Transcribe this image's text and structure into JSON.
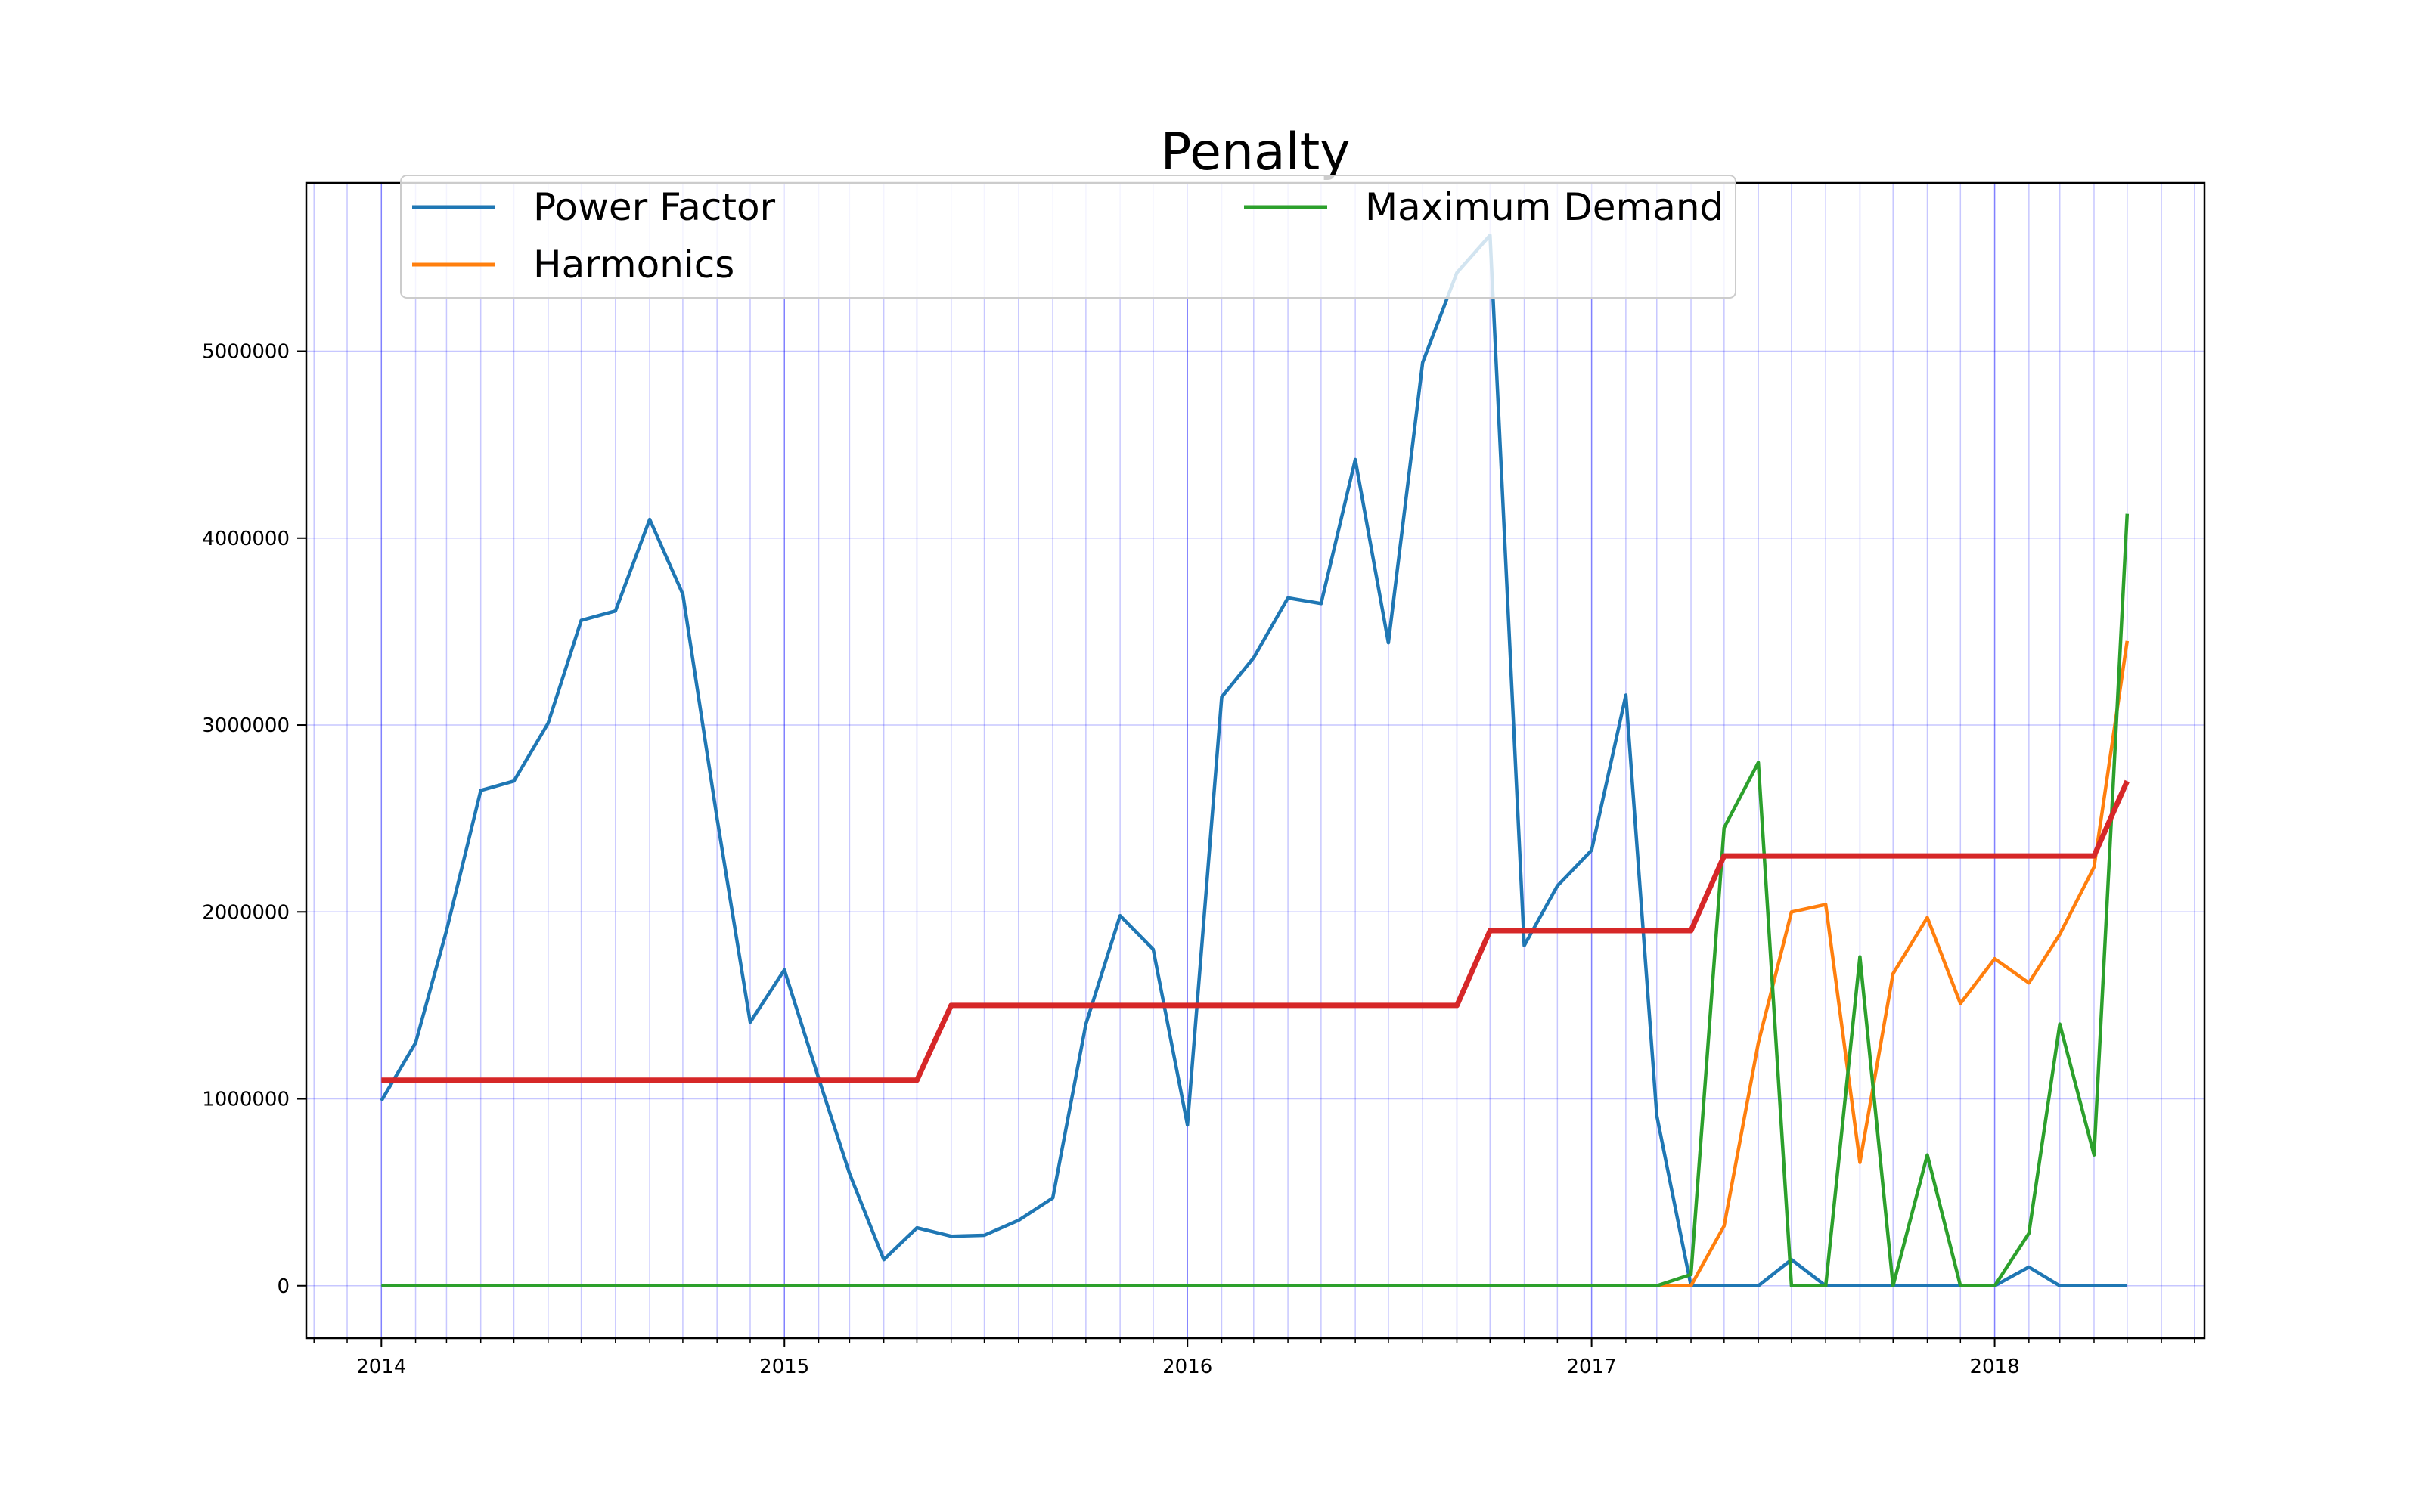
{
  "chart_data": {
    "type": "line",
    "title": "Penalty",
    "xlabel": "",
    "ylabel": "",
    "x_range": [
      "2013-10-25",
      "2018-07-10"
    ],
    "ylim": [
      -280000,
      5900000
    ],
    "x_ticks": [
      {
        "label": "2014",
        "date": "2014-01-01"
      },
      {
        "label": "2015",
        "date": "2015-01-01"
      },
      {
        "label": "2016",
        "date": "2016-01-01"
      },
      {
        "label": "2017",
        "date": "2017-01-01"
      },
      {
        "label": "2018",
        "date": "2018-01-01"
      }
    ],
    "y_ticks": [
      0,
      1000000,
      2000000,
      3000000,
      4000000,
      5000000
    ],
    "grid": true,
    "legend": {
      "placement": "top",
      "columns": 2
    },
    "series": [
      {
        "name": "Power Factor",
        "color": "#1f77b4",
        "x": [
          "2014-01",
          "2014-02",
          "2014-03",
          "2014-04",
          "2014-05",
          "2014-06",
          "2014-07",
          "2014-08",
          "2014-09",
          "2014-10",
          "2014-11",
          "2014-12",
          "2015-01",
          "2015-02",
          "2015-03",
          "2015-04",
          "2015-05",
          "2015-06",
          "2015-07",
          "2015-08",
          "2015-09",
          "2015-10",
          "2015-11",
          "2015-12",
          "2016-01",
          "2016-02",
          "2016-03",
          "2016-04",
          "2016-05",
          "2016-06",
          "2016-07",
          "2016-08",
          "2016-09",
          "2016-10",
          "2016-11",
          "2016-12",
          "2017-01",
          "2017-02",
          "2017-03",
          "2017-04",
          "2017-05",
          "2017-06",
          "2017-07",
          "2017-08",
          "2017-09",
          "2017-10",
          "2017-11",
          "2017-12",
          "2018-01",
          "2018-02",
          "2018-03",
          "2018-04",
          "2018-05"
        ],
        "values": [
          990000,
          1300000,
          1900000,
          2650000,
          2700000,
          3010000,
          3560000,
          3610000,
          4100000,
          3700000,
          2500000,
          1410000,
          1690000,
          1110000,
          600000,
          140000,
          310000,
          265000,
          270000,
          350000,
          470000,
          1400000,
          1980000,
          1800000,
          860000,
          3150000,
          3360000,
          3680000,
          3650000,
          4420000,
          3440000,
          4940000,
          5420000,
          5620000,
          1820000,
          2140000,
          2330000,
          3160000,
          910000,
          0,
          0,
          0,
          140000,
          0,
          0,
          0,
          0,
          0,
          0,
          100000,
          0,
          0,
          0
        ]
      },
      {
        "name": "Harmonics",
        "color": "#ff7f0e",
        "x": [
          "2017-03",
          "2017-04",
          "2017-05",
          "2017-06",
          "2017-07",
          "2017-08",
          "2017-09",
          "2017-10",
          "2017-11",
          "2017-12",
          "2018-01",
          "2018-02",
          "2018-03",
          "2018-04",
          "2018-05"
        ],
        "values": [
          0,
          0,
          320000,
          1300000,
          2000000,
          2040000,
          660000,
          1670000,
          1970000,
          1510000,
          1750000,
          1620000,
          1880000,
          2240000,
          3450000
        ]
      },
      {
        "name": "Maximum Demand",
        "color": "#2ca02c",
        "x": [
          "2014-01",
          "2017-03",
          "2017-04",
          "2017-05",
          "2017-06",
          "2017-07",
          "2017-08",
          "2017-09",
          "2017-10",
          "2017-11",
          "2017-12",
          "2018-01",
          "2018-02",
          "2018-03",
          "2018-04",
          "2018-05"
        ],
        "values": [
          0,
          0,
          60000,
          2450000,
          2800000,
          0,
          0,
          1760000,
          0,
          700000,
          0,
          0,
          280000,
          1400000,
          700000,
          4130000
        ]
      },
      {
        "name": "",
        "color": "#d62728",
        "x": [
          "2014-01",
          "2015-05",
          "2015-06",
          "2016-09",
          "2016-10",
          "2017-03",
          "2017-04",
          "2017-05",
          "2018-04",
          "2018-05"
        ],
        "values": [
          1100000,
          1100000,
          1500000,
          1500000,
          1900000,
          1900000,
          1900000,
          2300000,
          2300000,
          2700000
        ]
      }
    ]
  }
}
